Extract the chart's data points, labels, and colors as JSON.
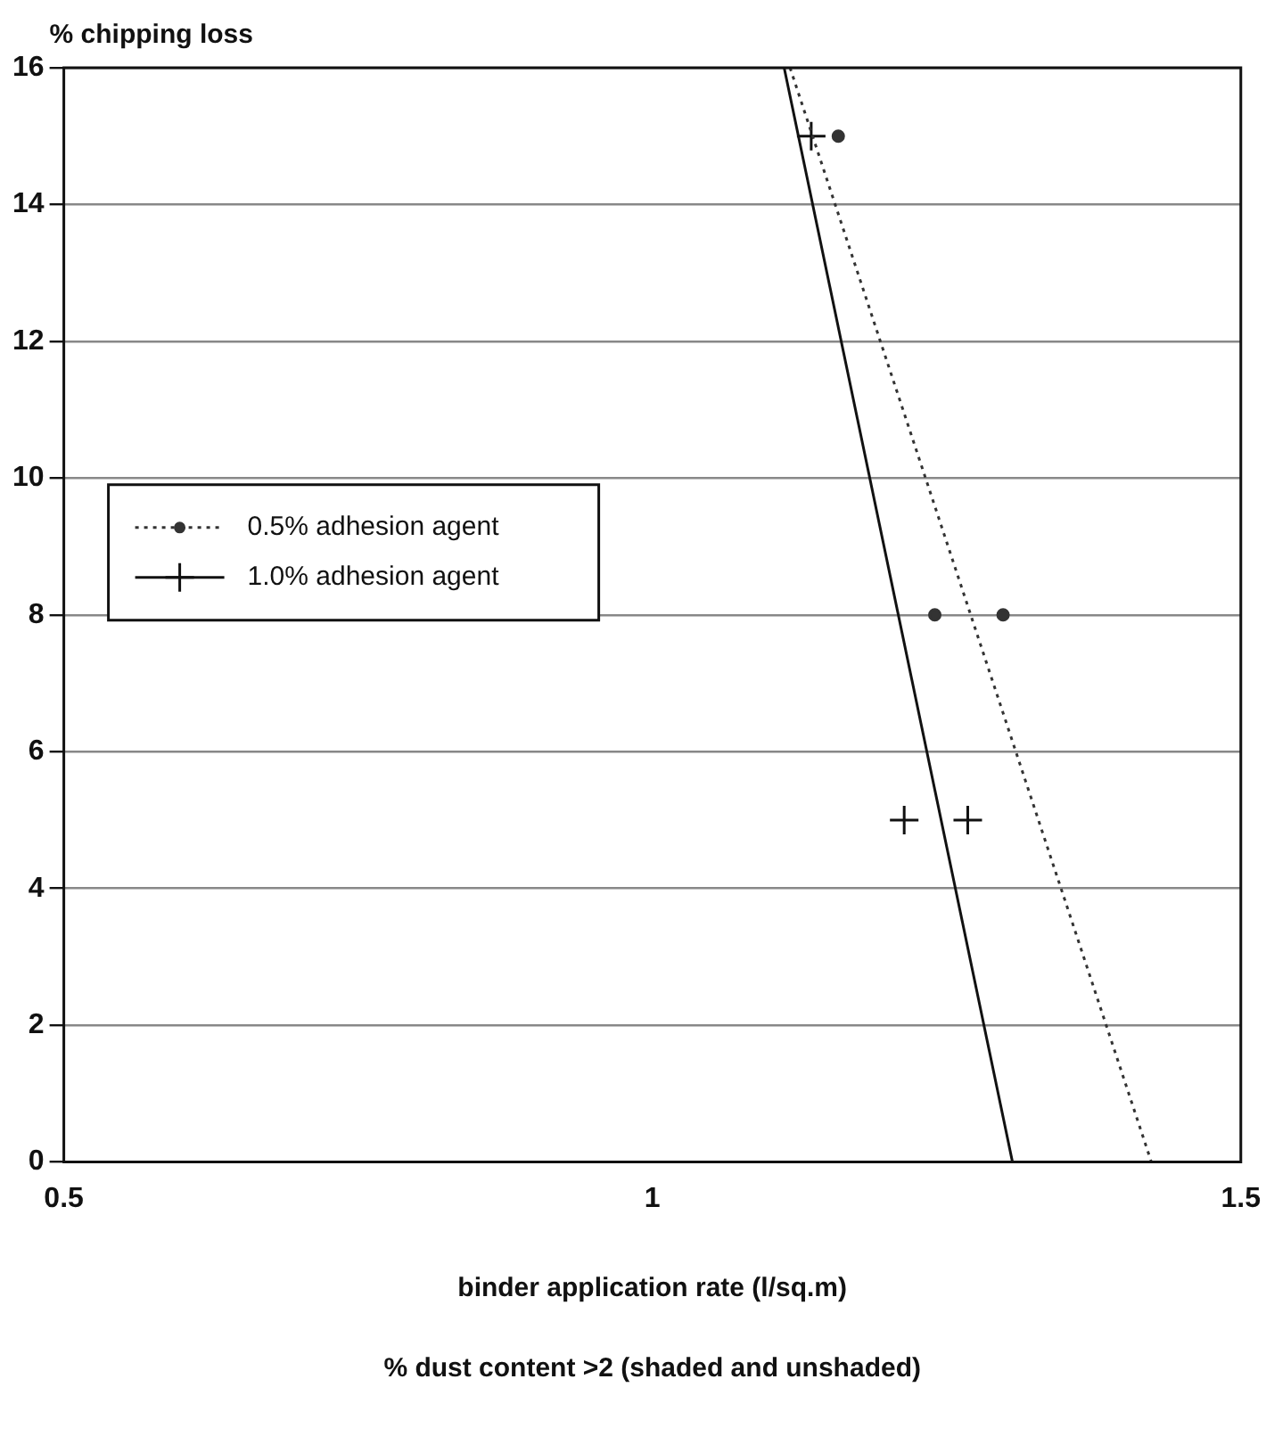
{
  "chart_data": {
    "type": "line",
    "ylabel": "% chipping loss",
    "xlabel": "binder application rate (l/sq.m)",
    "annotations": [
      "% dust content >2 (shaded and unshaded)"
    ],
    "xlim": [
      0.5,
      1.5
    ],
    "xticks": [
      0.5,
      1,
      1.5
    ],
    "ylim": [
      0,
      16
    ],
    "yticks": [
      0,
      2,
      4,
      6,
      8,
      10,
      12,
      14,
      16
    ],
    "grid": "y",
    "legend": "center left",
    "series": [
      {
        "name": "0.5% adhesion agent",
        "color": "#333333",
        "line_style": "dotted",
        "x": [
          1.117,
          1.424
        ],
        "values": [
          16,
          0
        ]
      },
      {
        "name": "1.0% adhesion agent",
        "color": "#111111",
        "line_style": "solid",
        "x": [
          1.112,
          1.306
        ],
        "values": [
          16,
          0
        ]
      },
      {
        "type": "scatter",
        "color": "#333333",
        "marker": "circle",
        "x": [
          1.158,
          1.24,
          1.298
        ],
        "values": [
          15,
          8,
          8
        ]
      },
      {
        "type": "scatter",
        "color": "#111111",
        "marker": "cross",
        "x": [
          1.135,
          1.214,
          1.268
        ],
        "values": [
          15,
          5,
          5
        ]
      }
    ]
  }
}
